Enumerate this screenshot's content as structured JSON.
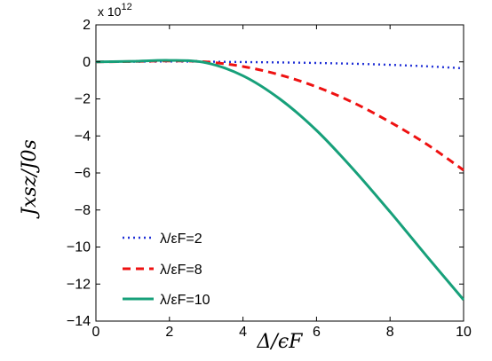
{
  "chart_data": {
    "type": "line",
    "xlabel": "Δ/ϵF",
    "ylabel": "Jxsz/J0s",
    "xlim": [
      0,
      10
    ],
    "ylim": [
      -14,
      2
    ],
    "y_multiplier": "x 10",
    "y_multiplier_exponent": "12",
    "x_ticks": [
      0,
      2,
      4,
      6,
      8,
      10
    ],
    "y_ticks": [
      2,
      0,
      -2,
      -4,
      -6,
      -8,
      -10,
      -12,
      -14
    ],
    "grid": false,
    "legend_placement": "bottom-left",
    "x": [
      0,
      1,
      2,
      3,
      4,
      5,
      6,
      7,
      8,
      9,
      10
    ],
    "series": [
      {
        "name": "λ/εF=2",
        "color": "#1f2fd6",
        "dash": "dotted",
        "values": [
          0,
          0.01,
          0.02,
          0.01,
          -0.01,
          -0.03,
          -0.06,
          -0.1,
          -0.16,
          -0.24,
          -0.35
        ]
      },
      {
        "name": "λ/εF=8",
        "color": "#ee1111",
        "dash": "dashed",
        "values": [
          0,
          0.02,
          0.05,
          0.0,
          -0.25,
          -0.7,
          -1.35,
          -2.2,
          -3.25,
          -4.45,
          -5.85
        ]
      },
      {
        "name": "λ/εF=10",
        "color": "#17a07a",
        "dash": "solid",
        "values": [
          0,
          0.03,
          0.08,
          -0.05,
          -0.75,
          -2.0,
          -3.7,
          -5.8,
          -8.1,
          -10.5,
          -12.85
        ]
      }
    ]
  }
}
